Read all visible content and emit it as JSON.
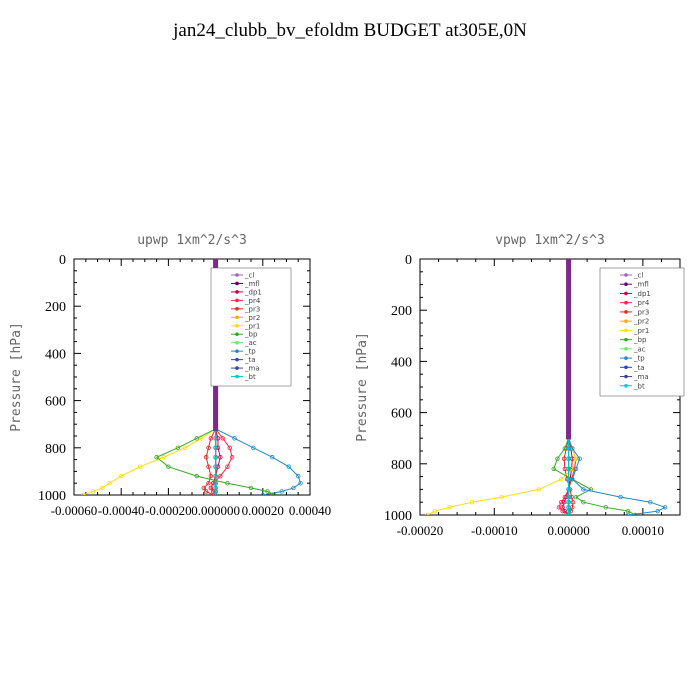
{
  "page_title": "jan24_clubb_bv_efoldm  BUDGET at305E,0N",
  "chart_data": [
    {
      "type": "line",
      "title": "upwp   1xm^2/s^3",
      "ylabel": "Pressure [hPa]",
      "xlabel": "",
      "ylim": [
        1000,
        0
      ],
      "xlim": [
        -0.0006,
        0.0004
      ],
      "y_ticks": [
        0,
        200,
        400,
        600,
        800,
        1000
      ],
      "y_tick_labels": [
        "0",
        "200",
        "400",
        "600",
        "800",
        "1000"
      ],
      "x_ticks": [
        -0.0006,
        -0.0004,
        -0.0002,
        0.0,
        0.0002,
        0.0004
      ],
      "x_tick_labels": [
        "-0.00060",
        "-0.00040",
        "-0.00020",
        "0.000000",
        "0.00020",
        "0.00040"
      ],
      "legend_position": "top-right",
      "pressure": [
        720,
        760,
        800,
        840,
        880,
        920,
        950,
        970,
        985,
        1000
      ],
      "series": [
        {
          "name": "_cl",
          "color": "#9966cc",
          "values": [
            0,
            0,
            0,
            0,
            0,
            0,
            0,
            0,
            0,
            0
          ]
        },
        {
          "name": "_mfl",
          "color": "#660066",
          "values": [
            0,
            0,
            0,
            0,
            0,
            0,
            0,
            0,
            0,
            0
          ]
        },
        {
          "name": "_dp1",
          "color": "#cc0044",
          "values": [
            0,
            1e-05,
            1e-05,
            2e-05,
            1e-05,
            0,
            -1e-05,
            -2e-05,
            -1e-05,
            0
          ]
        },
        {
          "name": "_pr4",
          "color": "#ff2244",
          "values": [
            0,
            3e-05,
            6e-05,
            7e-05,
            5e-05,
            2e-05,
            -1e-05,
            -2e-05,
            -1e-05,
            0
          ]
        },
        {
          "name": "_pr3",
          "color": "#ee2222",
          "values": [
            0,
            -2e-05,
            -3e-05,
            -4e-05,
            -3e-05,
            -2e-05,
            -3e-05,
            -5e-05,
            -4e-05,
            -1e-05
          ]
        },
        {
          "name": "_pr2",
          "color": "#ffaa00",
          "values": [
            0,
            0,
            0,
            0,
            0,
            0,
            0,
            0,
            0,
            0
          ]
        },
        {
          "name": "_pr1",
          "color": "#ffdd00",
          "values": [
            0,
            -6e-05,
            -0.00013,
            -0.00022,
            -0.00032,
            -0.0004,
            -0.00045,
            -0.00048,
            -0.00052,
            -0.00056
          ]
        },
        {
          "name": "_bp",
          "color": "#33aa22",
          "values": [
            0,
            -8e-05,
            -0.00016,
            -0.00025,
            -0.0002,
            -8e-05,
            5e-05,
            0.00015,
            0.00022,
            0.00025
          ]
        },
        {
          "name": "_ac",
          "color": "#66ee66",
          "values": [
            0,
            0,
            0,
            0,
            0,
            0,
            0,
            0,
            0,
            0
          ]
        },
        {
          "name": "_tp",
          "color": "#2288cc",
          "values": [
            0,
            8e-05,
            0.00016,
            0.00024,
            0.00031,
            0.00035,
            0.00036,
            0.00033,
            0.00028,
            0.0002
          ]
        },
        {
          "name": "_ta",
          "color": "#2244dd",
          "values": [
            0,
            0,
            0,
            0,
            0,
            0,
            0,
            0,
            0,
            0
          ]
        },
        {
          "name": "_ma",
          "color": "#444499",
          "values": [
            0,
            0,
            0,
            0,
            0,
            0,
            0,
            0,
            0,
            0
          ]
        },
        {
          "name": "_bt",
          "color": "#00cccc",
          "values": [
            0,
            0,
            0,
            0,
            0,
            0,
            0,
            0,
            0,
            0
          ]
        }
      ]
    },
    {
      "type": "line",
      "title": "vpwp   1xm^2/s^3",
      "ylabel": "Pressure [hPa]",
      "xlabel": "",
      "ylim": [
        1000,
        0
      ],
      "xlim": [
        -0.0002,
        0.00015
      ],
      "y_ticks": [
        0,
        200,
        400,
        600,
        800,
        1000
      ],
      "y_tick_labels": [
        "0",
        "200",
        "400",
        "600",
        "800",
        "1000"
      ],
      "x_ticks": [
        -0.0002,
        -0.0001,
        0.0,
        0.0001
      ],
      "x_tick_labels": [
        "-0.00020",
        "-0.00010",
        "0.00000",
        "0.00010"
      ],
      "legend_position": "top-right",
      "pressure": [
        700,
        740,
        780,
        820,
        860,
        900,
        930,
        950,
        970,
        985,
        1000
      ],
      "series": [
        {
          "name": "_cl",
          "color": "#9966cc",
          "values": [
            0,
            0,
            0,
            0,
            0,
            0,
            0,
            0,
            0,
            0,
            0
          ]
        },
        {
          "name": "_mfl",
          "color": "#660066",
          "values": [
            0,
            0,
            0,
            0,
            0,
            0,
            0,
            0,
            0,
            0,
            0
          ]
        },
        {
          "name": "_dp1",
          "color": "#cc0044",
          "values": [
            0,
            3e-06,
            5e-06,
            4e-06,
            2e-06,
            0,
            -3e-06,
            -6e-06,
            -8e-06,
            -5e-06,
            0
          ]
        },
        {
          "name": "_pr4",
          "color": "#ff2244",
          "values": [
            0,
            5e-06,
            1e-05,
            8e-06,
            4e-06,
            0,
            -5e-06,
            -1e-05,
            -1.3e-05,
            -8e-06,
            0
          ]
        },
        {
          "name": "_pr3",
          "color": "#ee2222",
          "values": [
            0,
            -3e-06,
            -6e-06,
            -5e-06,
            -2e-06,
            2e-06,
            4e-06,
            6e-06,
            5e-06,
            3e-06,
            0
          ]
        },
        {
          "name": "_pr2",
          "color": "#ffaa00",
          "values": [
            0,
            0,
            0,
            0,
            0,
            0,
            0,
            0,
            0,
            0,
            0
          ]
        },
        {
          "name": "_pr1",
          "color": "#ffdd00",
          "values": [
            0,
            5e-06,
            1e-05,
            5e-06,
            -1e-05,
            -4e-05,
            -9e-05,
            -0.00013,
            -0.00016,
            -0.00018,
            -0.00019
          ]
        },
        {
          "name": "_bp",
          "color": "#33aa22",
          "values": [
            0,
            -5e-06,
            -1.5e-05,
            -2e-05,
            5e-06,
            3e-05,
            1e-05,
            2e-05,
            5e-05,
            8e-05,
            9e-05
          ]
        },
        {
          "name": "_ac",
          "color": "#66ee66",
          "values": [
            0,
            0,
            0,
            0,
            0,
            0,
            0,
            0,
            0,
            0,
            0
          ]
        },
        {
          "name": "_tp",
          "color": "#2288cc",
          "values": [
            0,
            5e-06,
            1.5e-05,
            1e-05,
            5e-06,
            2e-05,
            7e-05,
            0.00011,
            0.00013,
            0.00012,
            8e-05
          ]
        },
        {
          "name": "_ta",
          "color": "#2244dd",
          "values": [
            0,
            0,
            0,
            0,
            0,
            0,
            0,
            0,
            0,
            0,
            0
          ]
        },
        {
          "name": "_ma",
          "color": "#444499",
          "values": [
            0,
            0,
            0,
            0,
            0,
            0,
            0,
            0,
            0,
            0,
            0
          ]
        },
        {
          "name": "_bt",
          "color": "#00cccc",
          "values": [
            0,
            0,
            0,
            0,
            0,
            0,
            0,
            0,
            0,
            0,
            0
          ]
        }
      ]
    }
  ]
}
